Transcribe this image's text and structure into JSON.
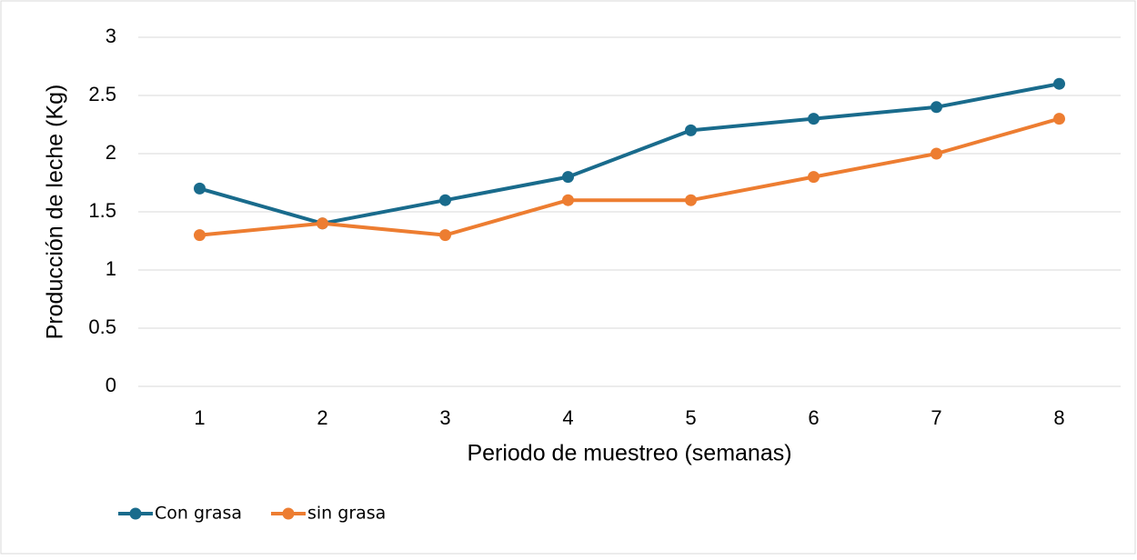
{
  "chart_data": {
    "type": "line",
    "x_label": "Periodo de muestreo (semanas)",
    "y_label": "Producción de leche (Kg)",
    "categories": [
      "1",
      "2",
      "3",
      "4",
      "5",
      "6",
      "7",
      "8"
    ],
    "series": [
      {
        "name": "Con grasa",
        "color": "#196b8c",
        "values": [
          1.7,
          1.4,
          1.6,
          1.8,
          2.2,
          2.3,
          2.4,
          2.6
        ]
      },
      {
        "name": "sin grasa",
        "color": "#ed7d31",
        "values": [
          1.3,
          1.4,
          1.3,
          1.6,
          1.6,
          1.8,
          2.0,
          2.3
        ]
      }
    ],
    "ylim": [
      0,
      3
    ],
    "yticks": [
      0,
      0.5,
      1,
      1.5,
      2,
      2.5,
      3
    ],
    "grid": true,
    "legend": "bottom-left"
  }
}
